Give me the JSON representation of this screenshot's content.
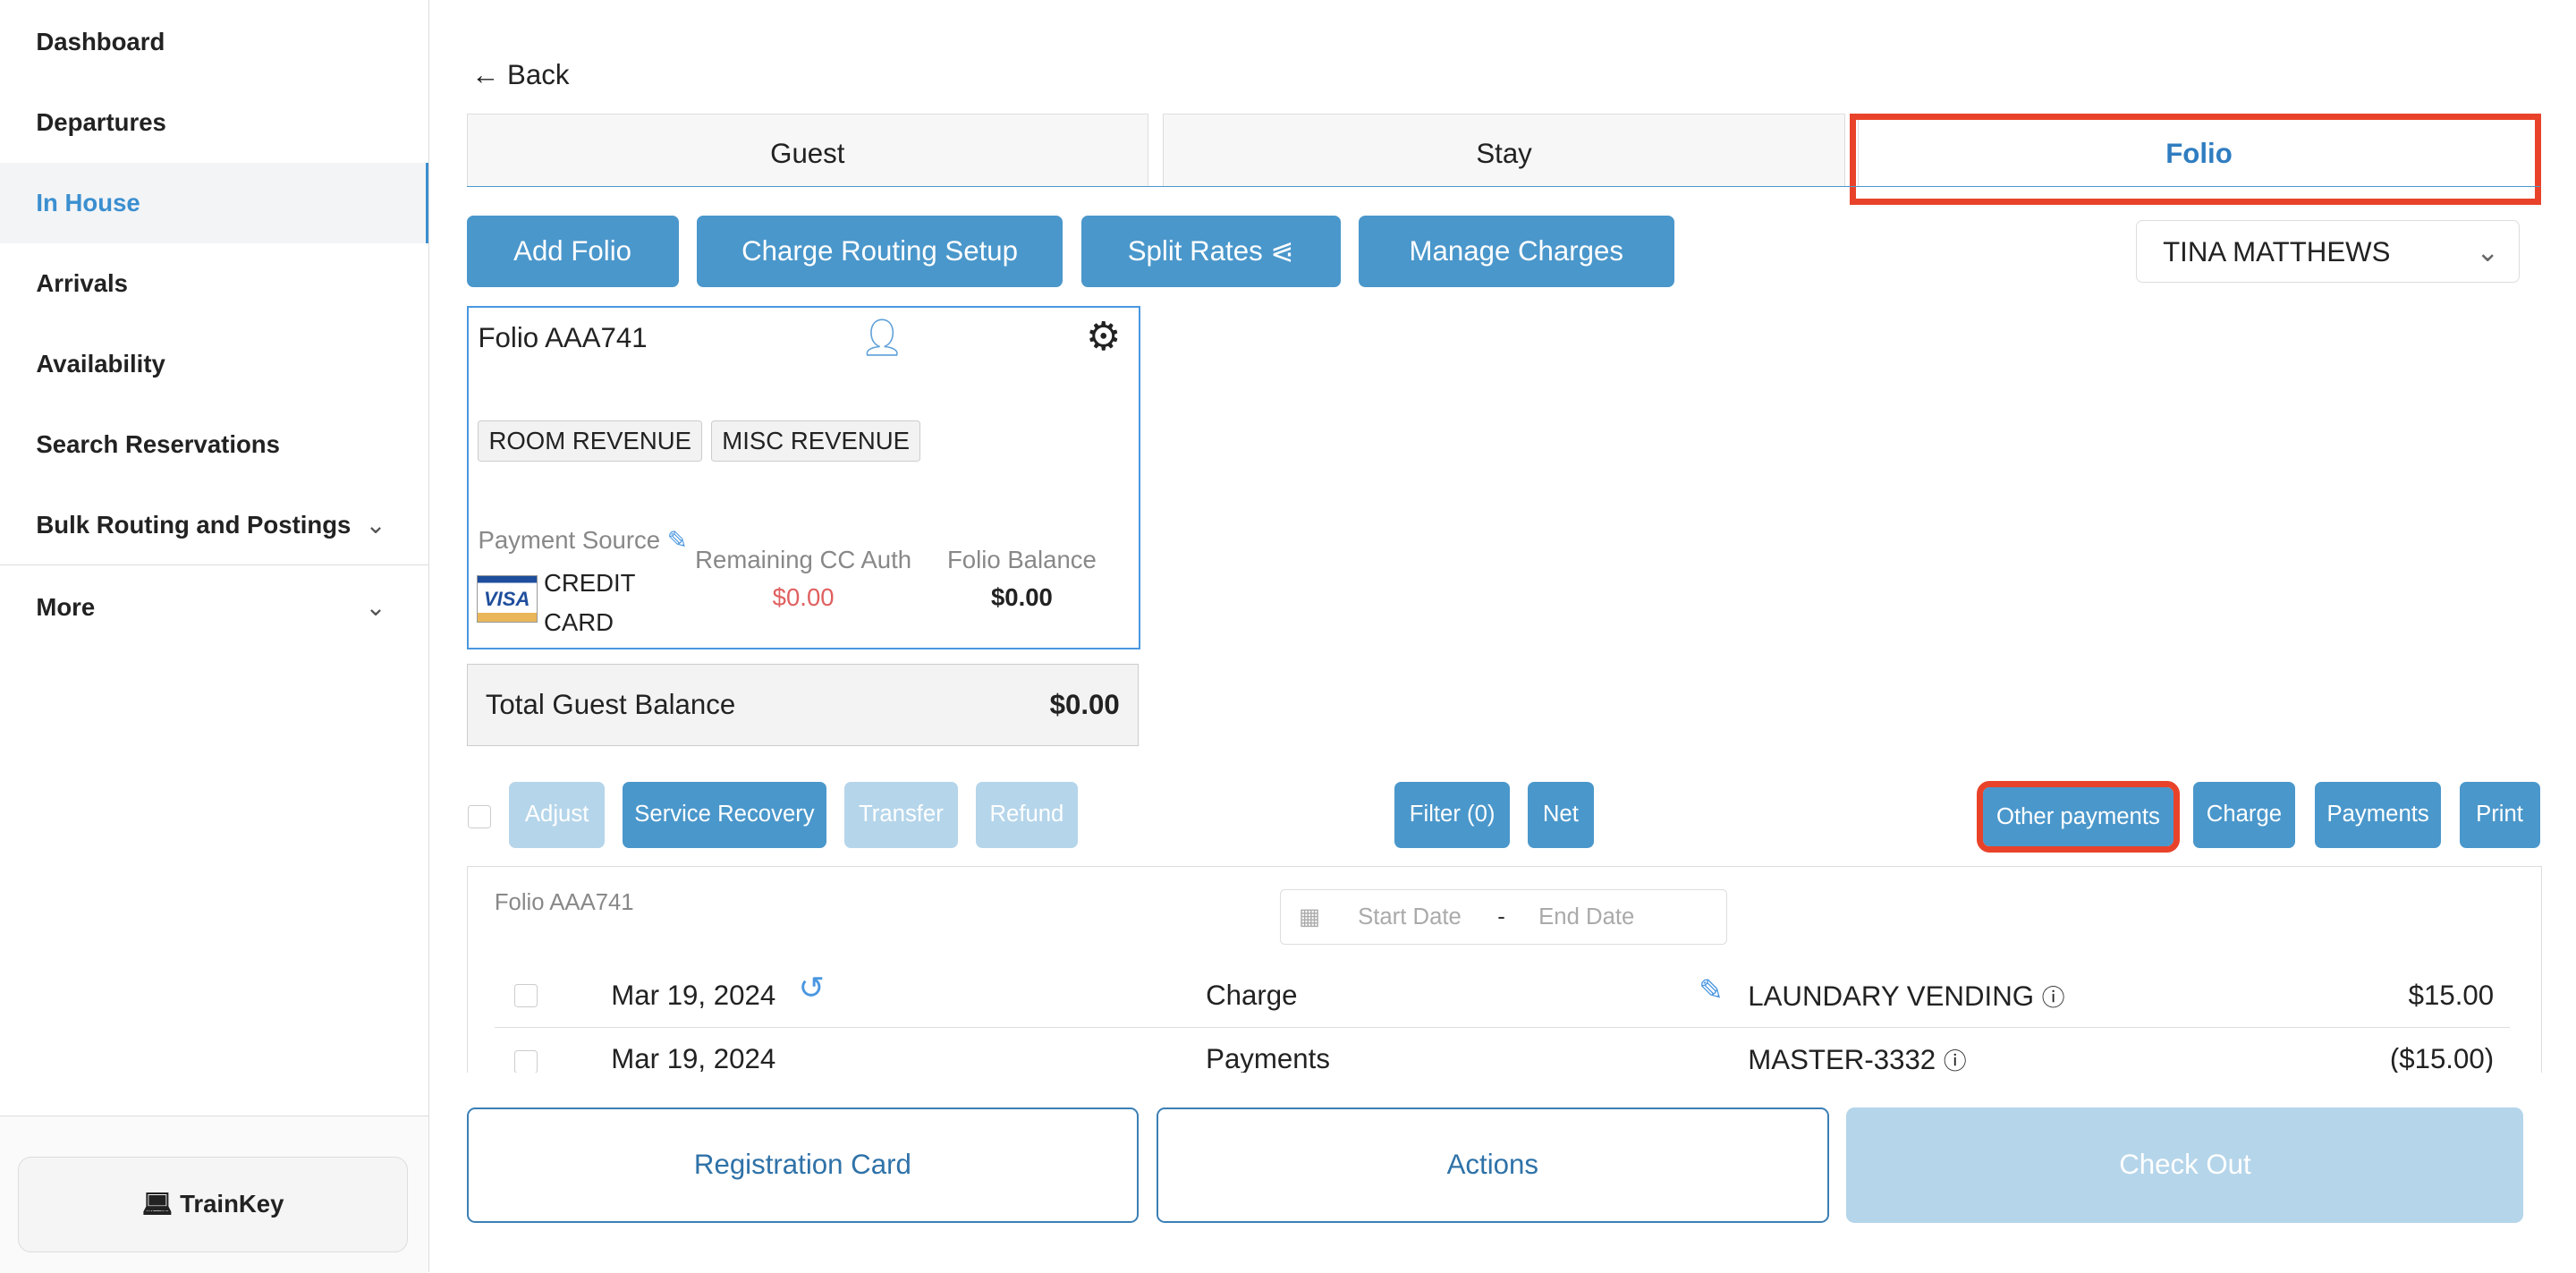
{
  "sidebar": {
    "items": [
      {
        "label": "Dashboard"
      },
      {
        "label": "Departures"
      },
      {
        "label": "In House"
      },
      {
        "label": "Arrivals"
      },
      {
        "label": "Availability"
      },
      {
        "label": "Search Reservations"
      },
      {
        "label": "Bulk Routing and Postings"
      },
      {
        "label": "More"
      }
    ],
    "active": "In House",
    "trainkey": "TrainKey"
  },
  "back": "Back",
  "tabs": [
    {
      "label": "Guest"
    },
    {
      "label": "Stay"
    },
    {
      "label": "Folio"
    }
  ],
  "toolbar": {
    "add_folio": "Add Folio",
    "charge_routing": "Charge Routing Setup",
    "split_rates": "Split Rates",
    "manage_charges": "Manage Charges",
    "guest_select": "TINA MATTHEWS"
  },
  "folio_card": {
    "title": "Folio AAA741",
    "tags": [
      "ROOM REVENUE",
      "MISC REVENUE"
    ],
    "payment_source_label": "Payment Source",
    "payment_source_value_1": "CREDIT",
    "payment_source_value_2": "CARD",
    "card_brand": "VISA",
    "remaining_label": "Remaining CC Auth",
    "remaining_value": "$0.00",
    "balance_label": "Folio Balance",
    "balance_value": "$0.00"
  },
  "total": {
    "label": "Total Guest Balance",
    "value": "$0.00"
  },
  "actions": {
    "adjust": "Adjust",
    "service_recovery": "Service Recovery",
    "transfer": "Transfer",
    "refund": "Refund",
    "filter": "Filter (0)",
    "net": "Net",
    "other_payments": "Other payments",
    "charge": "Charge",
    "payments": "Payments",
    "print": "Print"
  },
  "ledger": {
    "folio": "Folio AAA741",
    "start_placeholder": "Start Date",
    "end_placeholder": "End Date",
    "sep": "-",
    "rows": [
      {
        "date": "Mar 19, 2024",
        "type": "Charge",
        "desc": "LAUNDARY VENDING",
        "amount": "$15.00"
      },
      {
        "date": "Mar 19, 2024",
        "type": "Payments",
        "desc": "MASTER-3332",
        "amount": "($15.00)"
      }
    ]
  },
  "footer": {
    "registration": "Registration Card",
    "actions": "Actions",
    "checkout": "Check Out"
  },
  "colors": {
    "accent": "#4a97cb",
    "highlight": "#e8432a",
    "negative": "#e06060"
  }
}
